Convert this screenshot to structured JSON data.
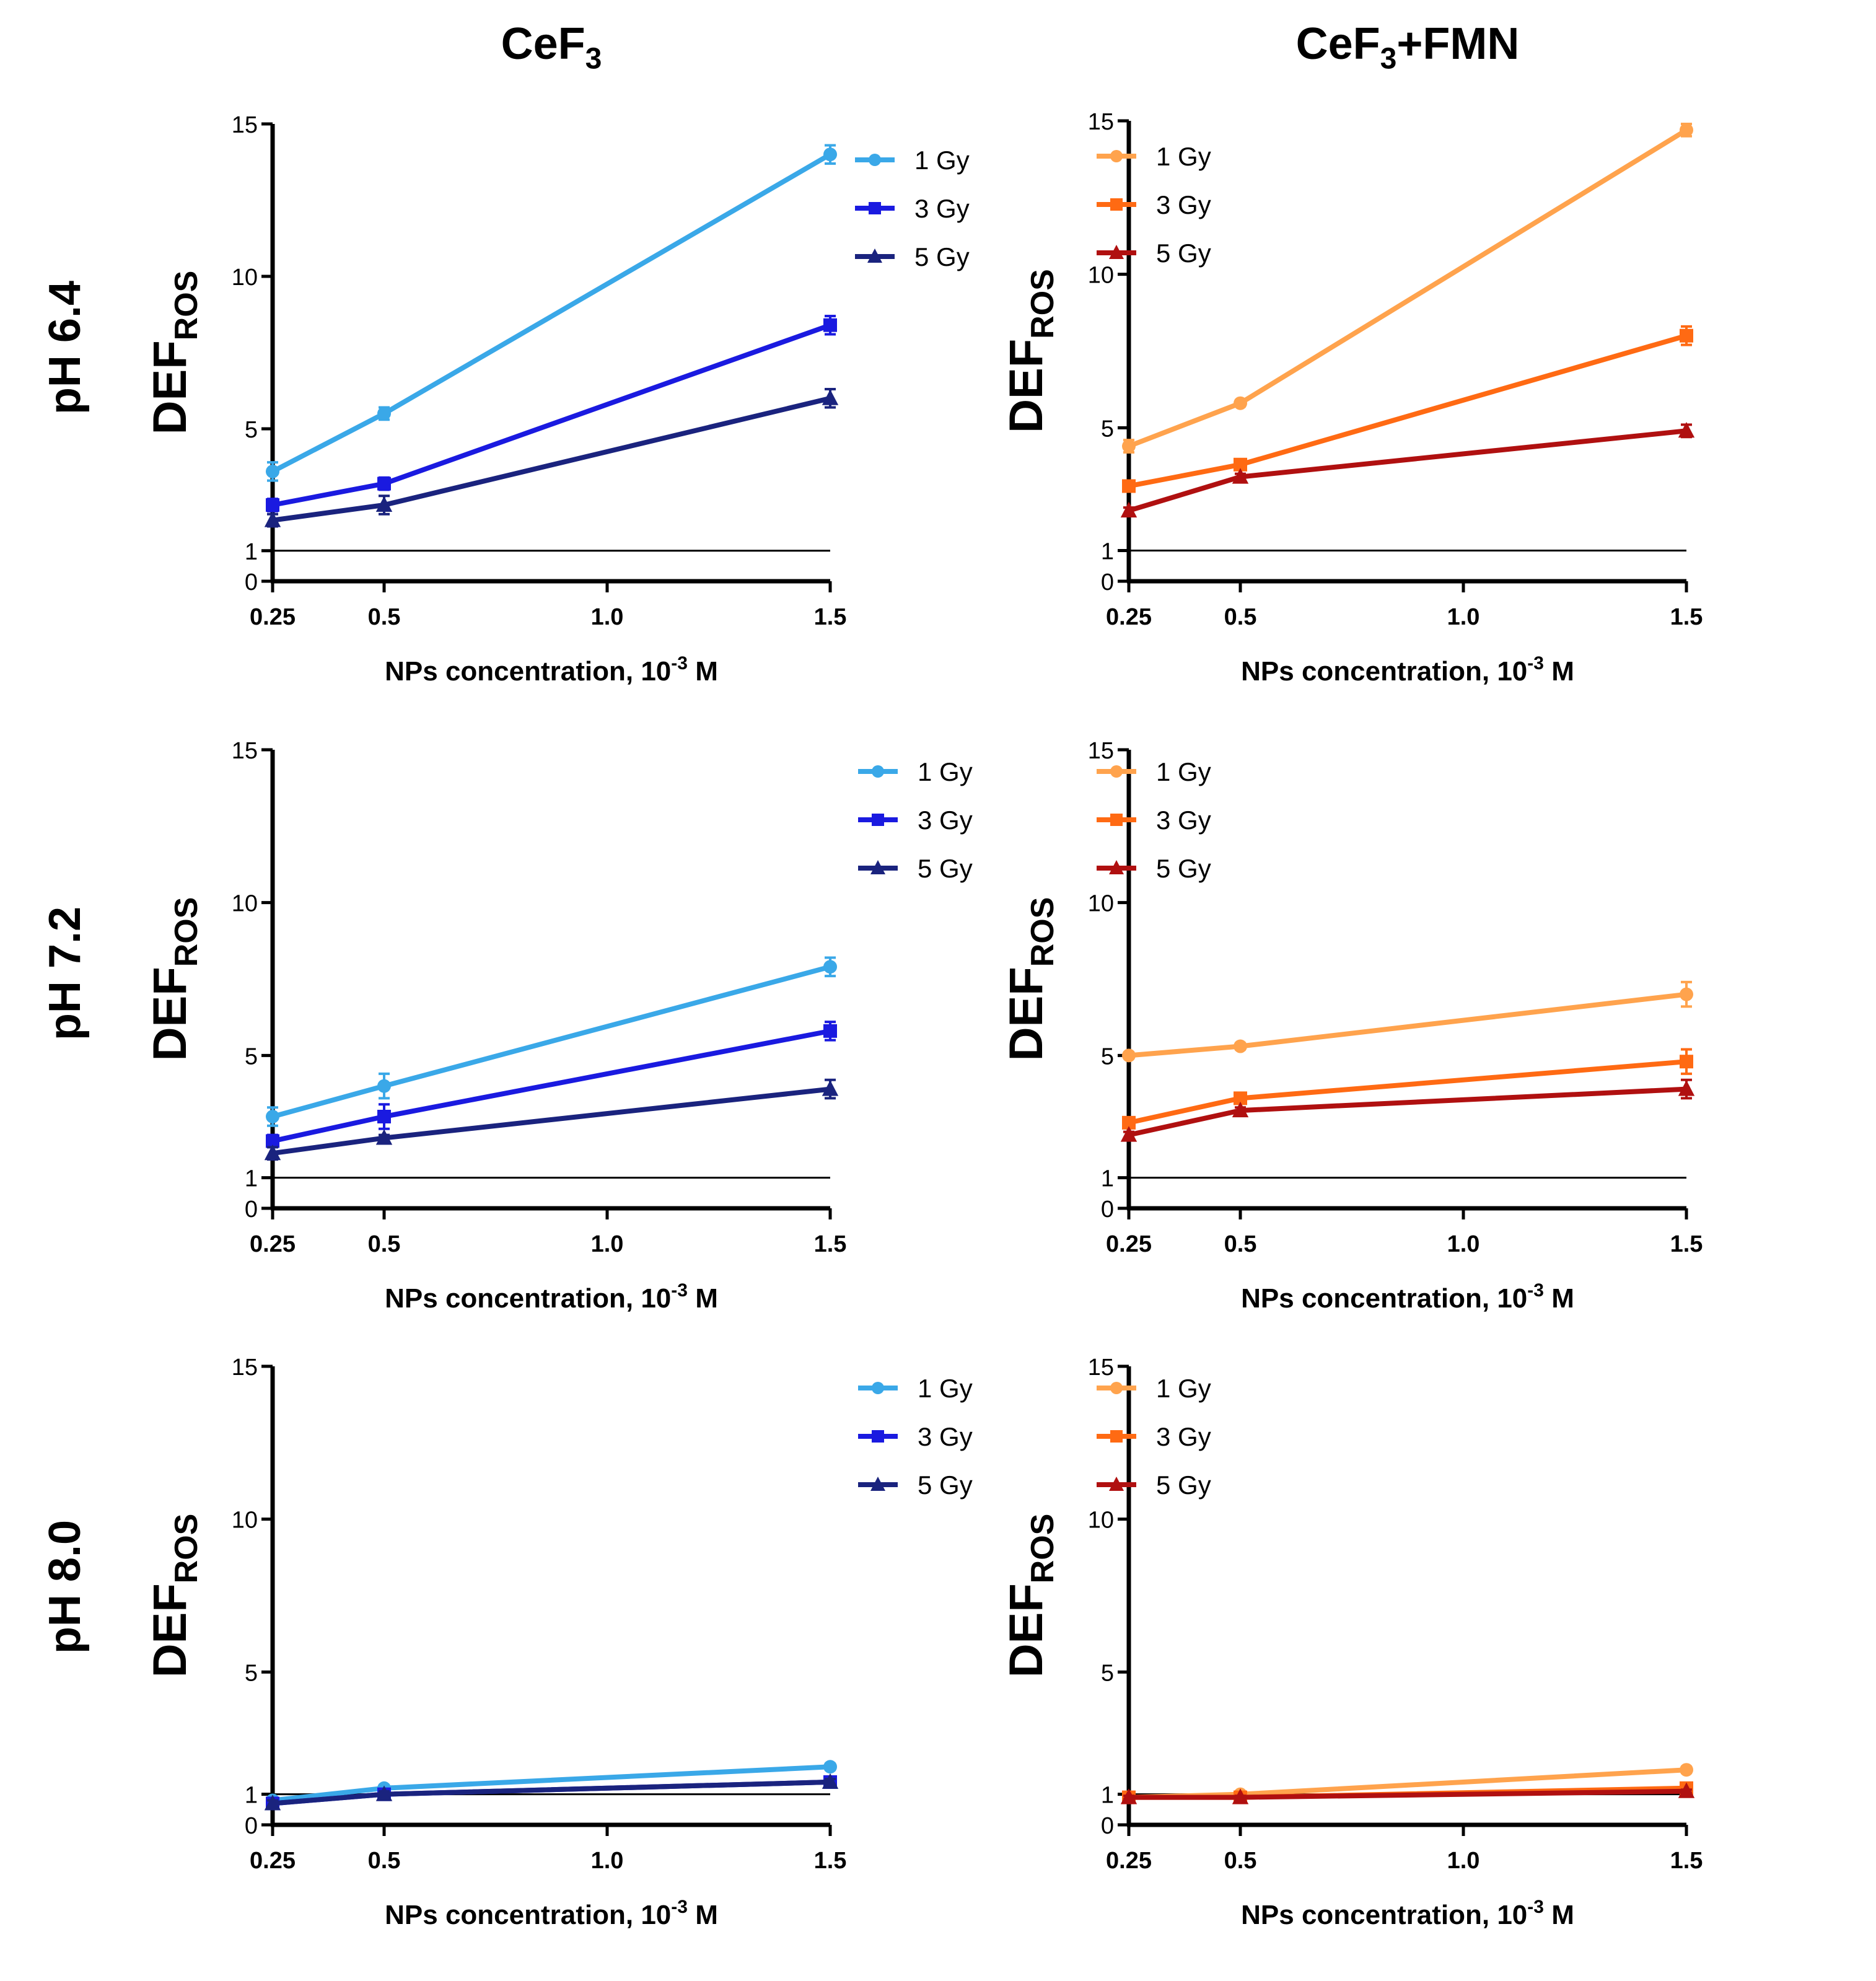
{
  "columns": [
    {
      "title_base": "CeF",
      "title_sub": "3",
      "title_tail": ""
    },
    {
      "title_base": "CeF",
      "title_sub": "3",
      "title_tail": "+FMN"
    }
  ],
  "rows": [
    {
      "label": "pH 6.4"
    },
    {
      "label": "pH 7.2"
    },
    {
      "label": "pH 8.0"
    }
  ],
  "axis_text": {
    "ylabel_main": "DEF",
    "ylabel_sub": "ROS",
    "xlabel_main": "NPs concentration, 10",
    "xlabel_sup": "-3",
    "xlabel_tail": " M"
  },
  "colors": {
    "blue": [
      "#3aa8e8",
      "#1a1ae0",
      "#1a237e"
    ],
    "orange": [
      "#ffa34d",
      "#ff6a13",
      "#b01010"
    ],
    "reference_line": "#000000"
  },
  "chart_data": [
    {
      "type": "line",
      "panel": "CeF3 pH 6.4",
      "palette": "blue",
      "x": [
        0.25,
        0.5,
        1.5
      ],
      "xlim": [
        0.25,
        1.5
      ],
      "xticks": [
        "0.25",
        "0.5",
        "1.0",
        "1.5"
      ],
      "xtick_values": [
        0.25,
        0.5,
        1.0,
        1.5
      ],
      "ylim": [
        0,
        15
      ],
      "yticks": [
        0,
        1,
        5,
        10,
        15
      ],
      "reference_y": 1,
      "series": [
        {
          "name": "1 Gy",
          "marker": "dot",
          "values": [
            3.6,
            5.5,
            14.0
          ],
          "err": [
            0.3,
            0.2,
            0.3
          ]
        },
        {
          "name": "3 Gy",
          "marker": "square",
          "values": [
            2.5,
            3.2,
            8.4
          ],
          "err": [
            0.2,
            0.2,
            0.3
          ]
        },
        {
          "name": "5 Gy",
          "marker": "triangle",
          "values": [
            2.0,
            2.5,
            6.0
          ],
          "err": [
            0.2,
            0.3,
            0.3
          ]
        }
      ]
    },
    {
      "type": "line",
      "panel": "CeF3+FMN pH 6.4",
      "palette": "orange",
      "x": [
        0.25,
        0.5,
        1.5
      ],
      "xlim": [
        0.25,
        1.5
      ],
      "xticks": [
        "0.25",
        "0.5",
        "1.0",
        "1.5"
      ],
      "xtick_values": [
        0.25,
        0.5,
        1.0,
        1.5
      ],
      "ylim": [
        0,
        15
      ],
      "yticks": [
        0,
        1,
        5,
        10,
        15
      ],
      "reference_y": 1,
      "series": [
        {
          "name": "1 Gy",
          "marker": "dot",
          "values": [
            4.4,
            5.8,
            14.7
          ],
          "err": [
            0.2,
            0.1,
            0.2
          ]
        },
        {
          "name": "3 Gy",
          "marker": "square",
          "values": [
            3.1,
            3.8,
            8.0
          ],
          "err": [
            0.1,
            0.1,
            0.3
          ]
        },
        {
          "name": "5 Gy",
          "marker": "triangle",
          "values": [
            2.3,
            3.4,
            4.9
          ],
          "err": [
            0.1,
            0.1,
            0.2
          ]
        }
      ]
    },
    {
      "type": "line",
      "panel": "CeF3 pH 7.2",
      "palette": "blue",
      "x": [
        0.25,
        0.5,
        1.5
      ],
      "xlim": [
        0.25,
        1.5
      ],
      "xticks": [
        "0.25",
        "0.5",
        "1.0",
        "1.5"
      ],
      "xtick_values": [
        0.25,
        0.5,
        1.0,
        1.5
      ],
      "ylim": [
        0,
        15
      ],
      "yticks": [
        0,
        1,
        5,
        10,
        15
      ],
      "reference_y": 1,
      "series": [
        {
          "name": "1 Gy",
          "marker": "dot",
          "values": [
            3.0,
            4.0,
            7.9
          ],
          "err": [
            0.3,
            0.4,
            0.3
          ]
        },
        {
          "name": "3 Gy",
          "marker": "square",
          "values": [
            2.2,
            3.0,
            5.8
          ],
          "err": [
            0.2,
            0.4,
            0.3
          ]
        },
        {
          "name": "5 Gy",
          "marker": "triangle",
          "values": [
            1.8,
            2.3,
            3.9
          ],
          "err": [
            0.2,
            0.1,
            0.3
          ]
        }
      ]
    },
    {
      "type": "line",
      "panel": "CeF3+FMN pH 7.2",
      "palette": "orange",
      "x": [
        0.25,
        0.5,
        1.5
      ],
      "xlim": [
        0.25,
        1.5
      ],
      "xticks": [
        "0.25",
        "0.5",
        "1.0",
        "1.5"
      ],
      "xtick_values": [
        0.25,
        0.5,
        1.0,
        1.5
      ],
      "ylim": [
        0,
        15
      ],
      "yticks": [
        0,
        1,
        5,
        10,
        15
      ],
      "reference_y": 1,
      "series": [
        {
          "name": "1 Gy",
          "marker": "dot",
          "values": [
            5.0,
            5.3,
            7.0
          ],
          "err": [
            0.1,
            0.1,
            0.4
          ]
        },
        {
          "name": "3 Gy",
          "marker": "square",
          "values": [
            2.8,
            3.6,
            4.8
          ],
          "err": [
            0.1,
            0.1,
            0.4
          ]
        },
        {
          "name": "5 Gy",
          "marker": "triangle",
          "values": [
            2.4,
            3.2,
            3.9
          ],
          "err": [
            0.1,
            0.1,
            0.3
          ]
        }
      ]
    },
    {
      "type": "line",
      "panel": "CeF3 pH 8.0",
      "palette": "blue",
      "x": [
        0.25,
        0.5,
        1.5
      ],
      "xlim": [
        0.25,
        1.5
      ],
      "xticks": [
        "0.25",
        "0.5",
        "1.0",
        "1.5"
      ],
      "xtick_values": [
        0.25,
        0.5,
        1.0,
        1.5
      ],
      "ylim": [
        0,
        15
      ],
      "yticks": [
        0,
        1,
        5,
        10,
        15
      ],
      "reference_y": 1,
      "series": [
        {
          "name": "1 Gy",
          "marker": "dot",
          "values": [
            0.8,
            1.2,
            1.9
          ],
          "err": [
            0.1,
            0.1,
            0.1
          ]
        },
        {
          "name": "3 Gy",
          "marker": "square",
          "values": [
            0.7,
            1.0,
            1.4
          ],
          "err": [
            0.1,
            0.1,
            0.1
          ]
        },
        {
          "name": "5 Gy",
          "marker": "triangle",
          "values": [
            0.7,
            1.0,
            1.4
          ],
          "err": [
            0.1,
            0.1,
            0.1
          ]
        }
      ]
    },
    {
      "type": "line",
      "panel": "CeF3+FMN pH 8.0",
      "palette": "orange",
      "x": [
        0.25,
        0.5,
        1.5
      ],
      "xlim": [
        0.25,
        1.5
      ],
      "xticks": [
        "0.25",
        "0.5",
        "1.0",
        "1.5"
      ],
      "xtick_values": [
        0.25,
        0.5,
        1.0,
        1.5
      ],
      "ylim": [
        0,
        15
      ],
      "yticks": [
        0,
        1,
        5,
        10,
        15
      ],
      "reference_y": 1,
      "series": [
        {
          "name": "1 Gy",
          "marker": "dot",
          "values": [
            0.9,
            1.0,
            1.8
          ],
          "err": [
            0.05,
            0.05,
            0.1
          ]
        },
        {
          "name": "3 Gy",
          "marker": "square",
          "values": [
            0.9,
            0.9,
            1.2
          ],
          "err": [
            0.05,
            0.05,
            0.05
          ]
        },
        {
          "name": "5 Gy",
          "marker": "triangle",
          "values": [
            0.9,
            0.9,
            1.1
          ],
          "err": [
            0.05,
            0.05,
            0.05
          ]
        }
      ]
    }
  ]
}
